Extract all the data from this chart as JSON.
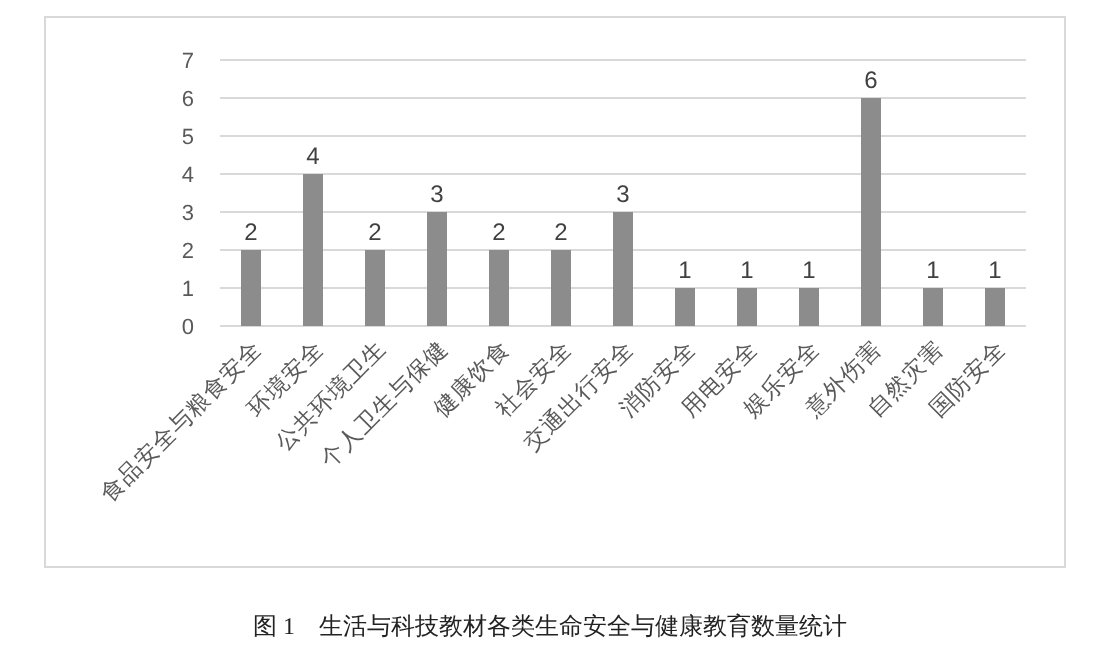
{
  "chart_data": {
    "type": "bar",
    "title": "图 1　生活与科技教材各类生命安全与健康教育数量统计",
    "categories": [
      "食品安全与粮食安全",
      "环境安全",
      "公共环境卫生",
      "个人卫生与保健",
      "健康饮食",
      "社会安全",
      "交通出行安全",
      "消防安全",
      "用电安全",
      "娱乐安全",
      "意外伤害",
      "自然灾害",
      "国防安全"
    ],
    "values": [
      2,
      4,
      2,
      3,
      2,
      2,
      3,
      1,
      1,
      1,
      6,
      1,
      1
    ],
    "color": "#8c8c8c",
    "ylim": [
      0,
      7
    ],
    "yticks": [
      0,
      1,
      2,
      3,
      4,
      5,
      6,
      7
    ],
    "grid": "y",
    "data_labels": true
  }
}
